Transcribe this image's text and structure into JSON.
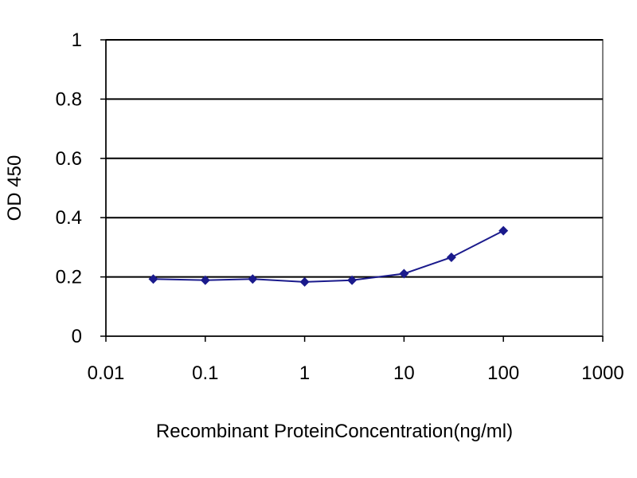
{
  "chart_data": {
    "type": "line",
    "title": "",
    "xlabel": "Recombinant ProteinConcentration(ng/ml)",
    "ylabel": "OD 450",
    "xscale": "log",
    "xlim": [
      0.01,
      1000
    ],
    "ylim": [
      0,
      1
    ],
    "xticks": [
      0.01,
      0.1,
      1,
      10,
      100,
      1000
    ],
    "xtick_labels": [
      "0.01",
      "0.1",
      "1",
      "10",
      "100",
      "1000"
    ],
    "yticks": [
      0,
      0.2,
      0.4,
      0.6,
      0.8,
      1
    ],
    "ytick_labels": [
      "0",
      "0.2",
      "0.4",
      "0.6",
      "0.8",
      "1"
    ],
    "grid": "horizontal",
    "legend": "none",
    "series": [
      {
        "color": "#1a1a8c",
        "marker": "diamond",
        "x": [
          0.03,
          0.1,
          0.3,
          1,
          3,
          10,
          30,
          100
        ],
        "y": [
          0.193,
          0.189,
          0.193,
          0.183,
          0.189,
          0.211,
          0.266,
          0.356
        ]
      }
    ]
  }
}
